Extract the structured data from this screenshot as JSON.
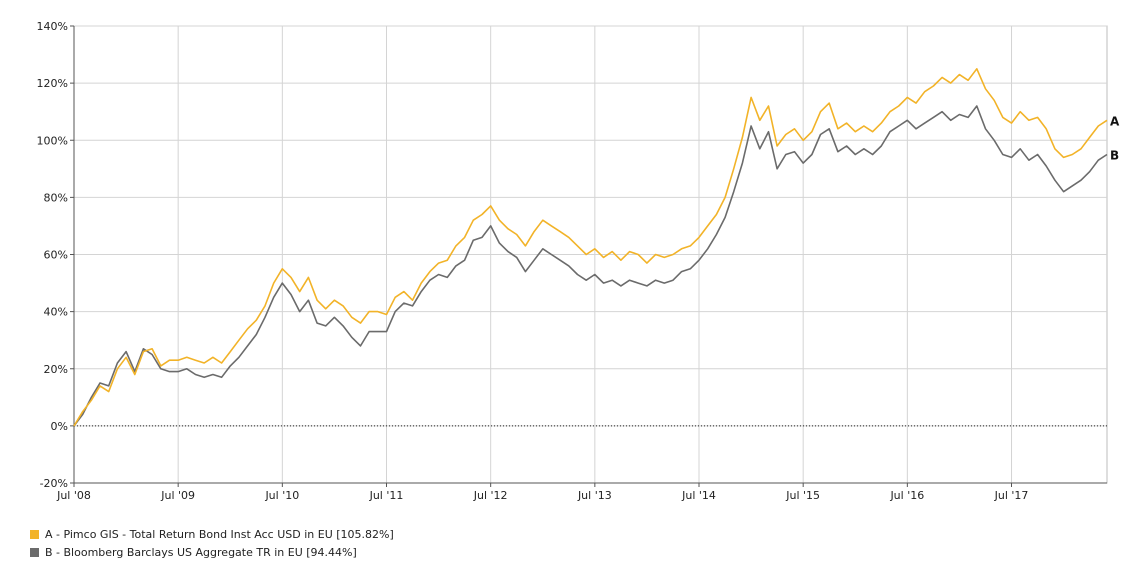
{
  "chart_data": {
    "type": "line",
    "y_unit": "%",
    "ylim": [
      -20,
      140
    ],
    "y_ticks": [
      -20,
      0,
      20,
      40,
      60,
      80,
      100,
      120,
      140
    ],
    "y_tick_labels": [
      "-20%",
      "0%",
      "20%",
      "40%",
      "60%",
      "80%",
      "100%",
      "120%",
      "140%"
    ],
    "xlim": [
      "2008-07",
      "2018-06"
    ],
    "x_ticks": [
      "2008-07",
      "2009-07",
      "2010-07",
      "2011-07",
      "2012-07",
      "2013-07",
      "2014-07",
      "2015-07",
      "2016-07",
      "2017-07"
    ],
    "x_tick_labels": [
      "Jul '08",
      "Jul '09",
      "Jul '10",
      "Jul '11",
      "Jul '12",
      "Jul '13",
      "Jul '14",
      "Jul '15",
      "Jul '16",
      "Jul '17"
    ],
    "grid": true,
    "baseline": 0,
    "series": [
      {
        "id": "A",
        "name": "A - Pimco GIS - Total Return Bond Inst Acc USD in EU [105.82%]",
        "color": "#f2b328",
        "end_label": "A",
        "points": [
          [
            "2008-07",
            0
          ],
          [
            "2008-08",
            5
          ],
          [
            "2008-09",
            9
          ],
          [
            "2008-10",
            14
          ],
          [
            "2008-11",
            12
          ],
          [
            "2008-12",
            20
          ],
          [
            "2009-01",
            24
          ],
          [
            "2009-02",
            18
          ],
          [
            "2009-03",
            26
          ],
          [
            "2009-04",
            27
          ],
          [
            "2009-05",
            21
          ],
          [
            "2009-06",
            23
          ],
          [
            "2009-07",
            23
          ],
          [
            "2009-08",
            24
          ],
          [
            "2009-09",
            23
          ],
          [
            "2009-10",
            22
          ],
          [
            "2009-11",
            24
          ],
          [
            "2009-12",
            22
          ],
          [
            "2010-01",
            26
          ],
          [
            "2010-02",
            30
          ],
          [
            "2010-03",
            34
          ],
          [
            "2010-04",
            37
          ],
          [
            "2010-05",
            42
          ],
          [
            "2010-06",
            50
          ],
          [
            "2010-07",
            55
          ],
          [
            "2010-08",
            52
          ],
          [
            "2010-09",
            47
          ],
          [
            "2010-10",
            52
          ],
          [
            "2010-11",
            44
          ],
          [
            "2010-12",
            41
          ],
          [
            "2011-01",
            44
          ],
          [
            "2011-02",
            42
          ],
          [
            "2011-03",
            38
          ],
          [
            "2011-04",
            36
          ],
          [
            "2011-05",
            40
          ],
          [
            "2011-06",
            40
          ],
          [
            "2011-07",
            39
          ],
          [
            "2011-08",
            45
          ],
          [
            "2011-09",
            47
          ],
          [
            "2011-10",
            44
          ],
          [
            "2011-11",
            50
          ],
          [
            "2011-12",
            54
          ],
          [
            "2012-01",
            57
          ],
          [
            "2012-02",
            58
          ],
          [
            "2012-03",
            63
          ],
          [
            "2012-04",
            66
          ],
          [
            "2012-05",
            72
          ],
          [
            "2012-06",
            74
          ],
          [
            "2012-07",
            77
          ],
          [
            "2012-08",
            72
          ],
          [
            "2012-09",
            69
          ],
          [
            "2012-10",
            67
          ],
          [
            "2012-11",
            63
          ],
          [
            "2012-12",
            68
          ],
          [
            "2013-01",
            72
          ],
          [
            "2013-02",
            70
          ],
          [
            "2013-03",
            68
          ],
          [
            "2013-04",
            66
          ],
          [
            "2013-05",
            63
          ],
          [
            "2013-06",
            60
          ],
          [
            "2013-07",
            62
          ],
          [
            "2013-08",
            59
          ],
          [
            "2013-09",
            61
          ],
          [
            "2013-10",
            58
          ],
          [
            "2013-11",
            61
          ],
          [
            "2013-12",
            60
          ],
          [
            "2014-01",
            57
          ],
          [
            "2014-02",
            60
          ],
          [
            "2014-03",
            59
          ],
          [
            "2014-04",
            60
          ],
          [
            "2014-05",
            62
          ],
          [
            "2014-06",
            63
          ],
          [
            "2014-07",
            66
          ],
          [
            "2014-08",
            70
          ],
          [
            "2014-09",
            74
          ],
          [
            "2014-10",
            80
          ],
          [
            "2014-11",
            90
          ],
          [
            "2014-12",
            101
          ],
          [
            "2015-01",
            115
          ],
          [
            "2015-02",
            107
          ],
          [
            "2015-03",
            112
          ],
          [
            "2015-04",
            98
          ],
          [
            "2015-05",
            102
          ],
          [
            "2015-06",
            104
          ],
          [
            "2015-07",
            100
          ],
          [
            "2015-08",
            103
          ],
          [
            "2015-09",
            110
          ],
          [
            "2015-10",
            113
          ],
          [
            "2015-11",
            104
          ],
          [
            "2015-12",
            106
          ],
          [
            "2016-01",
            103
          ],
          [
            "2016-02",
            105
          ],
          [
            "2016-03",
            103
          ],
          [
            "2016-04",
            106
          ],
          [
            "2016-05",
            110
          ],
          [
            "2016-06",
            112
          ],
          [
            "2016-07",
            115
          ],
          [
            "2016-08",
            113
          ],
          [
            "2016-09",
            117
          ],
          [
            "2016-10",
            119
          ],
          [
            "2016-11",
            122
          ],
          [
            "2016-12",
            120
          ],
          [
            "2017-01",
            123
          ],
          [
            "2017-02",
            121
          ],
          [
            "2017-03",
            125
          ],
          [
            "2017-04",
            118
          ],
          [
            "2017-05",
            114
          ],
          [
            "2017-06",
            108
          ],
          [
            "2017-07",
            106
          ],
          [
            "2017-08",
            110
          ],
          [
            "2017-09",
            107
          ],
          [
            "2017-10",
            108
          ],
          [
            "2017-11",
            104
          ],
          [
            "2017-12",
            97
          ],
          [
            "2018-01",
            94
          ],
          [
            "2018-02",
            95
          ],
          [
            "2018-03",
            97
          ],
          [
            "2018-04",
            101
          ],
          [
            "2018-05",
            105
          ],
          [
            "2018-06",
            107
          ]
        ]
      },
      {
        "id": "B",
        "name": "B - Bloomberg Barclays US Aggregate TR in EU [94.44%]",
        "color": "#6b6b6b",
        "end_label": "B",
        "points": [
          [
            "2008-07",
            0
          ],
          [
            "2008-08",
            4
          ],
          [
            "2008-09",
            10
          ],
          [
            "2008-10",
            15
          ],
          [
            "2008-11",
            14
          ],
          [
            "2008-12",
            22
          ],
          [
            "2009-01",
            26
          ],
          [
            "2009-02",
            19
          ],
          [
            "2009-03",
            27
          ],
          [
            "2009-04",
            25
          ],
          [
            "2009-05",
            20
          ],
          [
            "2009-06",
            19
          ],
          [
            "2009-07",
            19
          ],
          [
            "2009-08",
            20
          ],
          [
            "2009-09",
            18
          ],
          [
            "2009-10",
            17
          ],
          [
            "2009-11",
            18
          ],
          [
            "2009-12",
            17
          ],
          [
            "2010-01",
            21
          ],
          [
            "2010-02",
            24
          ],
          [
            "2010-03",
            28
          ],
          [
            "2010-04",
            32
          ],
          [
            "2010-05",
            38
          ],
          [
            "2010-06",
            45
          ],
          [
            "2010-07",
            50
          ],
          [
            "2010-08",
            46
          ],
          [
            "2010-09",
            40
          ],
          [
            "2010-10",
            44
          ],
          [
            "2010-11",
            36
          ],
          [
            "2010-12",
            35
          ],
          [
            "2011-01",
            38
          ],
          [
            "2011-02",
            35
          ],
          [
            "2011-03",
            31
          ],
          [
            "2011-04",
            28
          ],
          [
            "2011-05",
            33
          ],
          [
            "2011-06",
            33
          ],
          [
            "2011-07",
            33
          ],
          [
            "2011-08",
            40
          ],
          [
            "2011-09",
            43
          ],
          [
            "2011-10",
            42
          ],
          [
            "2011-11",
            47
          ],
          [
            "2011-12",
            51
          ],
          [
            "2012-01",
            53
          ],
          [
            "2012-02",
            52
          ],
          [
            "2012-03",
            56
          ],
          [
            "2012-04",
            58
          ],
          [
            "2012-05",
            65
          ],
          [
            "2012-06",
            66
          ],
          [
            "2012-07",
            70
          ],
          [
            "2012-08",
            64
          ],
          [
            "2012-09",
            61
          ],
          [
            "2012-10",
            59
          ],
          [
            "2012-11",
            54
          ],
          [
            "2012-12",
            58
          ],
          [
            "2013-01",
            62
          ],
          [
            "2013-02",
            60
          ],
          [
            "2013-03",
            58
          ],
          [
            "2013-04",
            56
          ],
          [
            "2013-05",
            53
          ],
          [
            "2013-06",
            51
          ],
          [
            "2013-07",
            53
          ],
          [
            "2013-08",
            50
          ],
          [
            "2013-09",
            51
          ],
          [
            "2013-10",
            49
          ],
          [
            "2013-11",
            51
          ],
          [
            "2013-12",
            50
          ],
          [
            "2014-01",
            49
          ],
          [
            "2014-02",
            51
          ],
          [
            "2014-03",
            50
          ],
          [
            "2014-04",
            51
          ],
          [
            "2014-05",
            54
          ],
          [
            "2014-06",
            55
          ],
          [
            "2014-07",
            58
          ],
          [
            "2014-08",
            62
          ],
          [
            "2014-09",
            67
          ],
          [
            "2014-10",
            73
          ],
          [
            "2014-11",
            82
          ],
          [
            "2014-12",
            92
          ],
          [
            "2015-01",
            105
          ],
          [
            "2015-02",
            97
          ],
          [
            "2015-03",
            103
          ],
          [
            "2015-04",
            90
          ],
          [
            "2015-05",
            95
          ],
          [
            "2015-06",
            96
          ],
          [
            "2015-07",
            92
          ],
          [
            "2015-08",
            95
          ],
          [
            "2015-09",
            102
          ],
          [
            "2015-10",
            104
          ],
          [
            "2015-11",
            96
          ],
          [
            "2015-12",
            98
          ],
          [
            "2016-01",
            95
          ],
          [
            "2016-02",
            97
          ],
          [
            "2016-03",
            95
          ],
          [
            "2016-04",
            98
          ],
          [
            "2016-05",
            103
          ],
          [
            "2016-06",
            105
          ],
          [
            "2016-07",
            107
          ],
          [
            "2016-08",
            104
          ],
          [
            "2016-09",
            106
          ],
          [
            "2016-10",
            108
          ],
          [
            "2016-11",
            110
          ],
          [
            "2016-12",
            107
          ],
          [
            "2017-01",
            109
          ],
          [
            "2017-02",
            108
          ],
          [
            "2017-03",
            112
          ],
          [
            "2017-04",
            104
          ],
          [
            "2017-05",
            100
          ],
          [
            "2017-06",
            95
          ],
          [
            "2017-07",
            94
          ],
          [
            "2017-08",
            97
          ],
          [
            "2017-09",
            93
          ],
          [
            "2017-10",
            95
          ],
          [
            "2017-11",
            91
          ],
          [
            "2017-12",
            86
          ],
          [
            "2018-01",
            82
          ],
          [
            "2018-02",
            84
          ],
          [
            "2018-03",
            86
          ],
          [
            "2018-04",
            89
          ],
          [
            "2018-05",
            93
          ],
          [
            "2018-06",
            95
          ]
        ]
      }
    ]
  },
  "legend": {
    "items": [
      {
        "label": "A - Pimco GIS - Total Return Bond Inst Acc USD in EU [105.82%]",
        "color": "#f2b328"
      },
      {
        "label": "B - Bloomberg Barclays US Aggregate TR in EU [94.44%]",
        "color": "#6b6b6b"
      }
    ]
  }
}
